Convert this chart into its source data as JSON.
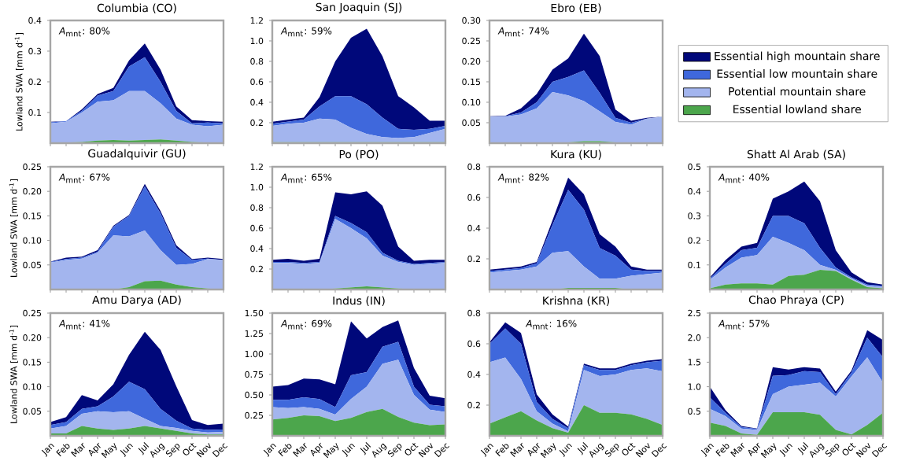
{
  "chart_data": [
    {
      "type": "area",
      "stacked": true,
      "title": "Columbia (CO)",
      "annotations": [
        "*A*$_{mnt}$: 80%"
      ],
      "ylabel": "Lowland SWA [mm d$^{-1}$]",
      "categories": [
        null,
        null,
        null,
        null,
        null,
        null,
        null,
        null,
        null,
        null,
        null,
        null
      ],
      "ylim": [
        0,
        0.4
      ],
      "yticks": [
        0.1,
        0.2,
        0.3,
        0.4
      ],
      "series": [
        {
          "color": "#4ca64c",
          "values": [
            0.002,
            0.002,
            0.004,
            0.008,
            0.01,
            0.008,
            0.01,
            0.012,
            0.008,
            0.004,
            0.002,
            0.002
          ]
        },
        {
          "color": "#a3b5ee",
          "values": [
            0.063,
            0.068,
            0.096,
            0.127,
            0.13,
            0.162,
            0.16,
            0.118,
            0.072,
            0.056,
            0.053,
            0.058
          ]
        },
        {
          "color": "#3f68dc",
          "values": [
            0.003,
            0.002,
            0.005,
            0.02,
            0.03,
            0.08,
            0.11,
            0.07,
            0.025,
            0.005,
            0.012,
            0.005
          ]
        },
        {
          "color": "#00087a",
          "values": [
            0.002,
            0,
            0.005,
            0.005,
            0.01,
            0.02,
            0.045,
            0.04,
            0.015,
            0.01,
            0.005,
            0.005
          ]
        }
      ]
    },
    {
      "type": "area",
      "stacked": true,
      "title": "San Joaquin (SJ)",
      "annotations": [
        "*A*$_{mnt}$: 59%"
      ],
      "categories": [
        null,
        null,
        null,
        null,
        null,
        null,
        null,
        null,
        null,
        null,
        null,
        null
      ],
      "ylim": [
        0,
        1.2
      ],
      "yticks": [
        0.2,
        0.4,
        0.6,
        0.8,
        {
          "value": 1.0,
          "label": "1.0"
        },
        1.2
      ],
      "series": [
        {
          "color": "#4ca64c",
          "values": [
            0.01,
            0.01,
            0.01,
            0.01,
            0.01,
            0.01,
            0.01,
            0.01,
            0.01,
            0.01,
            0.01,
            0.01
          ]
        },
        {
          "color": "#a3b5ee",
          "values": [
            0.16,
            0.18,
            0.19,
            0.23,
            0.22,
            0.14,
            0.08,
            0.05,
            0.04,
            0.05,
            0.09,
            0.13
          ]
        },
        {
          "color": "#3f68dc",
          "values": [
            0.02,
            0.02,
            0.03,
            0.12,
            0.23,
            0.31,
            0.29,
            0.19,
            0.09,
            0.07,
            0.04,
            0.03
          ]
        },
        {
          "color": "#00087a",
          "values": [
            0.02,
            0.02,
            0.02,
            0.09,
            0.34,
            0.57,
            0.74,
            0.6,
            0.32,
            0.22,
            0.08,
            0.05
          ]
        }
      ]
    },
    {
      "type": "area",
      "stacked": true,
      "title": "Ebro (EB)",
      "annotations": [
        "*A*$_{mnt}$: 74%"
      ],
      "legend": "right",
      "categories": [
        null,
        null,
        null,
        null,
        null,
        null,
        null,
        null,
        null,
        null,
        null,
        null
      ],
      "ylim": [
        0,
        0.3
      ],
      "yticks": [
        0.05,
        {
          "value": 0.1,
          "label": "0.10"
        },
        0.15,
        {
          "value": 0.2,
          "label": "0.20"
        },
        0.25,
        {
          "value": 0.3,
          "label": "0.30"
        }
      ],
      "series": [
        {
          "name": "Essential lowland share",
          "color": "#4ca64c",
          "values": [
            0,
            0,
            0,
            0,
            0,
            0.002,
            0.005,
            0.005,
            0.002,
            0,
            0,
            0
          ]
        },
        {
          "name": "Potential mountain share",
          "color": "#a3b5ee",
          "values": [
            0.065,
            0.065,
            0.07,
            0.085,
            0.125,
            0.115,
            0.098,
            0.073,
            0.05,
            0.045,
            0.06,
            0.065
          ]
        },
        {
          "name": "Essential low mountain share",
          "color": "#3f68dc",
          "values": [
            0,
            0.001,
            0.005,
            0.015,
            0.025,
            0.045,
            0.075,
            0.045,
            0.01,
            0.005,
            0,
            0
          ]
        },
        {
          "name": "Essential high mountain share",
          "color": "#00087a",
          "values": [
            0.001,
            0.001,
            0.01,
            0.02,
            0.03,
            0.045,
            0.09,
            0.09,
            0.02,
            0.005,
            0.002,
            0
          ]
        }
      ]
    },
    {
      "type": "area",
      "stacked": true,
      "title": "Guadalquivir (GU)",
      "annotations": [
        "*A*$_{mnt}$: 67%"
      ],
      "ylabel": "Lowland SWA [mm d$^{-1}$]",
      "categories": [
        null,
        null,
        null,
        null,
        null,
        null,
        null,
        null,
        null,
        null,
        null,
        null
      ],
      "ylim": [
        0,
        0.25
      ],
      "yticks": [
        0.05,
        {
          "value": 0.1,
          "label": "0.10"
        },
        0.15,
        {
          "value": 0.2,
          "label": "0.20"
        },
        0.25
      ],
      "series": [
        {
          "color": "#4ca64c",
          "values": [
            0,
            0,
            0,
            0,
            0,
            0.005,
            0.017,
            0.018,
            0.01,
            0.005,
            0.002,
            0
          ]
        },
        {
          "color": "#a3b5ee",
          "values": [
            0.055,
            0.06,
            0.063,
            0.075,
            0.11,
            0.103,
            0.103,
            0.062,
            0.04,
            0.047,
            0.06,
            0.06
          ]
        },
        {
          "color": "#3f68dc",
          "values": [
            0.001,
            0.002,
            0.002,
            0.002,
            0.018,
            0.042,
            0.09,
            0.075,
            0.035,
            0.008,
            0.001,
            0
          ]
        },
        {
          "color": "#00087a",
          "values": [
            0.001,
            0.003,
            0.002,
            0.003,
            0.002,
            0.002,
            0.005,
            0.005,
            0.005,
            0.002,
            0.002,
            0.002
          ]
        }
      ]
    },
    {
      "type": "area",
      "stacked": true,
      "title": "Po (PO)",
      "annotations": [
        "*A*$_{mnt}$: 65%"
      ],
      "categories": [
        null,
        null,
        null,
        null,
        null,
        null,
        null,
        null,
        null,
        null,
        null,
        null
      ],
      "ylim": [
        0,
        1.2
      ],
      "yticks": [
        0.2,
        0.4,
        0.6,
        0.8,
        {
          "value": 1.0,
          "label": "1.0"
        },
        1.2
      ],
      "series": [
        {
          "color": "#4ca64c",
          "values": [
            0,
            0,
            0,
            0,
            0.01,
            0.02,
            0.03,
            0.02,
            0.01,
            0,
            0,
            0
          ]
        },
        {
          "color": "#a3b5ee",
          "values": [
            0.26,
            0.26,
            0.25,
            0.26,
            0.68,
            0.58,
            0.47,
            0.31,
            0.26,
            0.24,
            0.25,
            0.26
          ]
        },
        {
          "color": "#3f68dc",
          "values": [
            0.01,
            0.01,
            0.01,
            0.01,
            0.03,
            0.05,
            0.06,
            0.03,
            0.01,
            0.01,
            0.01,
            0.01
          ]
        },
        {
          "color": "#00087a",
          "values": [
            0.02,
            0.03,
            0.02,
            0.03,
            0.23,
            0.28,
            0.4,
            0.46,
            0.14,
            0.03,
            0.03,
            0.02
          ]
        }
      ]
    },
    {
      "type": "area",
      "stacked": true,
      "title": "Kura (KU)",
      "annotations": [
        "*A*$_{mnt}$: 82%"
      ],
      "categories": [
        null,
        null,
        null,
        null,
        null,
        null,
        null,
        null,
        null,
        null,
        null,
        null
      ],
      "ylim": [
        0,
        0.8
      ],
      "yticks": [
        0.2,
        0.4,
        0.6,
        0.8
      ],
      "series": [
        {
          "color": "#4ca64c",
          "values": [
            0,
            0,
            0,
            0,
            0,
            0.01,
            0.01,
            0.01,
            0.01,
            0,
            0,
            0
          ]
        },
        {
          "color": "#a3b5ee",
          "values": [
            0.11,
            0.12,
            0.13,
            0.15,
            0.24,
            0.24,
            0.14,
            0.06,
            0.06,
            0.09,
            0.1,
            0.11
          ]
        },
        {
          "color": "#3f68dc",
          "values": [
            0.01,
            0.01,
            0.01,
            0.02,
            0.18,
            0.4,
            0.37,
            0.2,
            0.15,
            0.04,
            0.02,
            0.01
          ]
        },
        {
          "color": "#00087a",
          "values": [
            0.01,
            0.01,
            0.01,
            0.01,
            0.03,
            0.08,
            0.1,
            0.09,
            0.06,
            0.02,
            0.01,
            0.01
          ]
        }
      ]
    },
    {
      "type": "area",
      "stacked": true,
      "title": "Shatt Al Arab (SA)",
      "annotations": [
        "*A*$_{mnt}$: 40%"
      ],
      "categories": [
        null,
        null,
        null,
        null,
        null,
        null,
        null,
        null,
        null,
        null,
        null,
        null
      ],
      "ylim": [
        0,
        0.5
      ],
      "yticks": [
        0.1,
        0.2,
        0.3,
        0.4,
        0.5
      ],
      "series": [
        {
          "color": "#4ca64c",
          "values": [
            0.005,
            0.02,
            0.025,
            0.025,
            0.02,
            0.055,
            0.06,
            0.08,
            0.075,
            0.04,
            0.01,
            0.005
          ]
        },
        {
          "color": "#a3b5ee",
          "values": [
            0.035,
            0.07,
            0.105,
            0.115,
            0.195,
            0.135,
            0.1,
            0.02,
            0.005,
            0.005,
            0.005,
            0.005
          ]
        },
        {
          "color": "#3f68dc",
          "values": [
            0.005,
            0.015,
            0.03,
            0.03,
            0.085,
            0.11,
            0.11,
            0.07,
            0.01,
            0.005,
            0.005,
            0.005
          ]
        },
        {
          "color": "#00087a",
          "values": [
            0.005,
            0.015,
            0.015,
            0.02,
            0.07,
            0.1,
            0.17,
            0.19,
            0.07,
            0.02,
            0.01,
            0.005
          ]
        }
      ]
    },
    {
      "type": "area",
      "stacked": true,
      "title": "Amu Darya (AD)",
      "annotations": [
        "*A*$_{mnt}$: 41%"
      ],
      "ylabel": "Lowland SWA [mm d$^{-1}$]",
      "categories": [
        "Jan",
        "Feb",
        "Mar",
        "Apr",
        "May",
        "Jun",
        "Jul",
        "Aug",
        "Sep",
        "Oct",
        "Nov",
        "Dec"
      ],
      "ylim": [
        0,
        0.25
      ],
      "yticks": [
        0.05,
        {
          "value": 0.1,
          "label": "0.10"
        },
        0.15,
        {
          "value": 0.2,
          "label": "0.20"
        },
        0.25
      ],
      "series": [
        {
          "color": "#4ca64c",
          "values": [
            0.005,
            0.005,
            0.02,
            0.015,
            0.012,
            0.015,
            0.02,
            0.015,
            0.01,
            0.005,
            0.003,
            0.003
          ]
        },
        {
          "color": "#a3b5ee",
          "values": [
            0.01,
            0.015,
            0.025,
            0.035,
            0.036,
            0.035,
            0.015,
            0.005,
            0.006,
            0.005,
            0.004,
            0.005
          ]
        },
        {
          "color": "#3f68dc",
          "values": [
            0.007,
            0.008,
            0.01,
            0.01,
            0.032,
            0.06,
            0.06,
            0.035,
            0.015,
            0.005,
            0.005,
            0.005
          ]
        },
        {
          "color": "#00087a",
          "values": [
            0.006,
            0.01,
            0.028,
            0.012,
            0.025,
            0.055,
            0.117,
            0.12,
            0.07,
            0.017,
            0.01,
            0.012
          ]
        }
      ]
    },
    {
      "type": "area",
      "stacked": true,
      "title": "Indus (IN)",
      "annotations": [
        "*A*$_{mnt}$: 69%"
      ],
      "categories": [
        "Jan",
        "Feb",
        "Mar",
        "Apr",
        "May",
        "Jun",
        "Jul",
        "Aug",
        "Sep",
        "Oct",
        "Nov",
        "Dec"
      ],
      "ylim": [
        0,
        1.5
      ],
      "yticks": [
        0.25,
        {
          "value": 0.5,
          "label": "0.50"
        },
        0.75,
        {
          "value": 1.0,
          "label": "1.00"
        },
        1.25,
        {
          "value": 1.5,
          "label": "1.50"
        }
      ],
      "series": [
        {
          "color": "#4ca64c",
          "values": [
            0.2,
            0.22,
            0.25,
            0.24,
            0.18,
            0.22,
            0.29,
            0.33,
            0.23,
            0.16,
            0.13,
            0.14
          ]
        },
        {
          "color": "#a3b5ee",
          "values": [
            0.15,
            0.12,
            0.1,
            0.09,
            0.08,
            0.23,
            0.31,
            0.55,
            0.7,
            0.34,
            0.19,
            0.15
          ]
        },
        {
          "color": "#3f68dc",
          "values": [
            0.09,
            0.1,
            0.12,
            0.12,
            0.09,
            0.29,
            0.18,
            0.21,
            0.22,
            0.1,
            0.06,
            0.07
          ]
        },
        {
          "color": "#00087a",
          "values": [
            0.16,
            0.18,
            0.23,
            0.24,
            0.28,
            0.66,
            0.41,
            0.24,
            0.26,
            0.23,
            0.11,
            0.1
          ]
        }
      ]
    },
    {
      "type": "area",
      "stacked": true,
      "title": "Krishna (KR)",
      "annotations": [
        "*A*$_{mnt}$: 16%"
      ],
      "categories": [
        "Jan",
        "Feb",
        "Mar",
        "Apr",
        "May",
        "Jun",
        "Jul",
        "Aug",
        "Sep",
        "Oct",
        "Nov",
        "Dec"
      ],
      "ylim": [
        0,
        0.8
      ],
      "yticks": [
        0.2,
        0.4,
        0.6,
        0.8
      ],
      "series": [
        {
          "color": "#4ca64c",
          "values": [
            0.08,
            0.12,
            0.16,
            0.1,
            0.05,
            0.02,
            0.2,
            0.15,
            0.15,
            0.14,
            0.11,
            0.07
          ]
        },
        {
          "color": "#a3b5ee",
          "values": [
            0.4,
            0.39,
            0.21,
            0.06,
            0.03,
            0.01,
            0.23,
            0.24,
            0.25,
            0.29,
            0.33,
            0.35
          ]
        },
        {
          "color": "#3f68dc",
          "values": [
            0.12,
            0.19,
            0.23,
            0.06,
            0.03,
            0.02,
            0.03,
            0.04,
            0.03,
            0.03,
            0.04,
            0.07
          ]
        },
        {
          "color": "#00087a",
          "values": [
            0.01,
            0.04,
            0.07,
            0.05,
            0.03,
            0.01,
            0.01,
            0.01,
            0.01,
            0.01,
            0.01,
            0.01
          ]
        }
      ]
    },
    {
      "type": "area",
      "stacked": true,
      "title": "Chao Phraya (CP)",
      "annotations": [
        "*A*$_{mnt}$: 57%"
      ],
      "categories": [
        "Jan",
        "Feb",
        "Mar",
        "Apr",
        "May",
        "Jun",
        "Jul",
        "Aug",
        "Sep",
        "Oct",
        "Nov",
        "Dec"
      ],
      "ylim": [
        0,
        2.5
      ],
      "yticks": [
        0.5,
        {
          "value": 1.0,
          "label": "1.0"
        },
        1.5,
        {
          "value": 2.0,
          "label": "2.0"
        },
        2.5
      ],
      "series": [
        {
          "color": "#4ca64c",
          "values": [
            0.27,
            0.2,
            0.05,
            0.02,
            0.48,
            0.48,
            0.48,
            0.43,
            0.12,
            0.03,
            0.22,
            0.47
          ]
        },
        {
          "color": "#a3b5ee",
          "values": [
            0.28,
            0.2,
            0.1,
            0.1,
            0.37,
            0.52,
            0.56,
            0.65,
            0.68,
            1.18,
            1.38,
            0.61
          ]
        },
        {
          "color": "#3f68dc",
          "values": [
            0.23,
            0.07,
            0.03,
            0.02,
            0.37,
            0.24,
            0.28,
            0.22,
            0.05,
            0.08,
            0.4,
            0.52
          ]
        },
        {
          "color": "#00087a",
          "values": [
            0.22,
            0.05,
            0.02,
            0.01,
            0.18,
            0.11,
            0.08,
            0.07,
            0.05,
            0.04,
            0.15,
            0.35
          ]
        }
      ]
    }
  ]
}
